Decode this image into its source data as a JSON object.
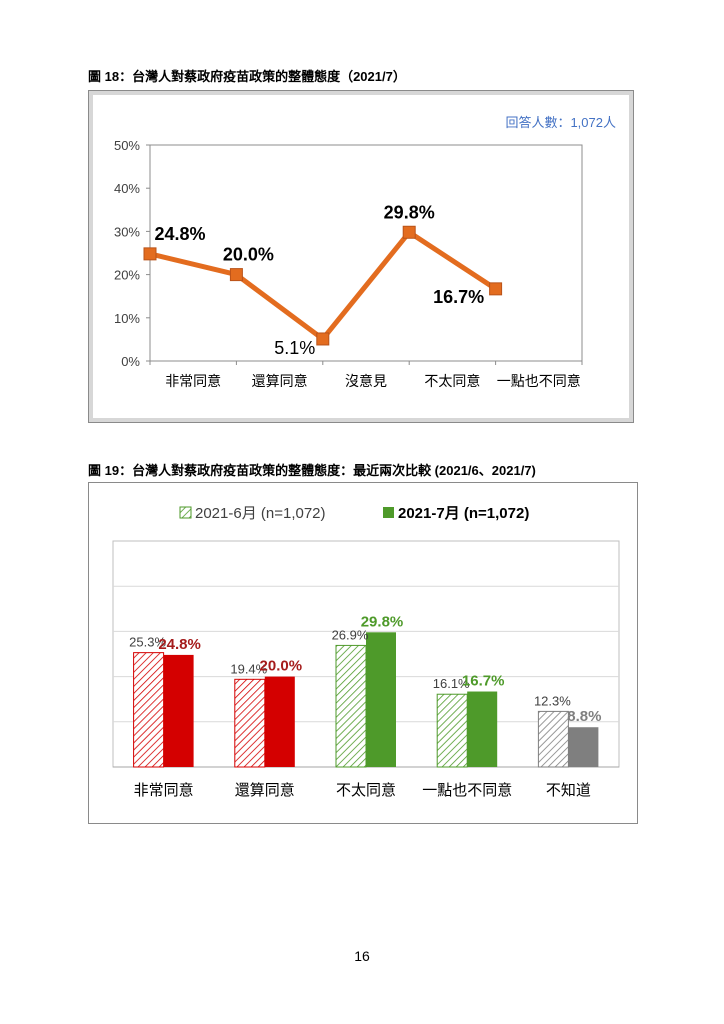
{
  "page_number": "16",
  "colors": {
    "line": "#E36C1F",
    "red": "#D40000",
    "green": "#4E9A2A",
    "gray": "#7F7F7F",
    "dark_red_label": "#A51C1C",
    "green_label": "#4E9A2A",
    "gray_label": "#808080",
    "respondents": "#4472C4"
  },
  "chart_data": [
    {
      "type": "line",
      "title": "圖 18：台灣人對蔡政府疫苗政策的整體態度（2021/7）",
      "note": "回答人數：1,072人",
      "categories": [
        "非常同意",
        "還算同意",
        "沒意見",
        "不太同意",
        "一點也不同意"
      ],
      "values": [
        24.8,
        20.0,
        5.1,
        29.8,
        16.7
      ],
      "value_labels": [
        "24.8%",
        "20.0%",
        "5.1%",
        "29.8%",
        "16.7%"
      ],
      "ylim": [
        0,
        50
      ],
      "yticks": [
        "0%",
        "10%",
        "20%",
        "30%",
        "40%",
        "50%"
      ],
      "grid": false
    },
    {
      "type": "bar",
      "title": "圖 19：台灣人對蔡政府疫苗政策的整體態度：最近兩次比較 (2021/6、2021/7)",
      "categories": [
        "非常同意",
        "還算同意",
        "不太同意",
        "一點也不同意",
        "不知道"
      ],
      "series": [
        {
          "name": "2021-6月 (n=1,072)",
          "values": [
            25.3,
            19.4,
            26.9,
            16.1,
            12.3
          ],
          "labels": [
            "25.3%",
            "19.4%",
            "26.9%",
            "16.1%",
            "12.3%"
          ]
        },
        {
          "name": "2021-7月 (n=1,072)",
          "values": [
            24.8,
            20.0,
            29.8,
            16.7,
            8.8
          ],
          "labels": [
            "24.8%",
            "20.0%",
            "29.8%",
            "16.7%",
            "8.8%"
          ]
        }
      ],
      "ylim": [
        0,
        50
      ],
      "grid": true,
      "legend": "top"
    }
  ]
}
